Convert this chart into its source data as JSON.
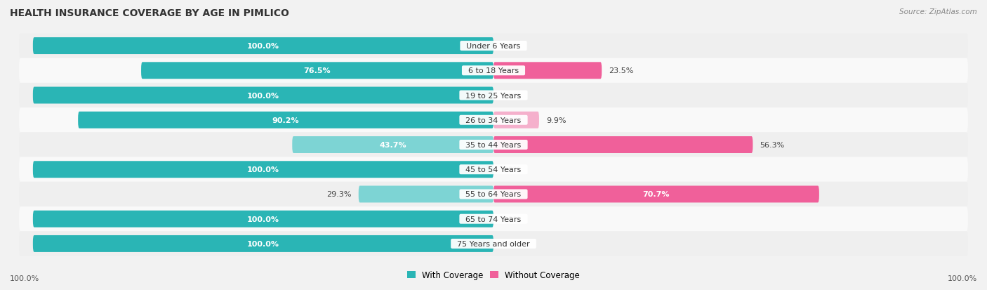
{
  "title": "HEALTH INSURANCE COVERAGE BY AGE IN PIMLICO",
  "source": "Source: ZipAtlas.com",
  "categories": [
    "Under 6 Years",
    "6 to 18 Years",
    "19 to 25 Years",
    "26 to 34 Years",
    "35 to 44 Years",
    "45 to 54 Years",
    "55 to 64 Years",
    "65 to 74 Years",
    "75 Years and older"
  ],
  "with_coverage": [
    100.0,
    76.5,
    100.0,
    90.2,
    43.7,
    100.0,
    29.3,
    100.0,
    100.0
  ],
  "without_coverage": [
    0.0,
    23.5,
    0.0,
    9.9,
    56.3,
    0.0,
    70.7,
    0.0,
    0.0
  ],
  "color_with_dark": "#2ab5b5",
  "color_with_light": "#7dd4d4",
  "color_without_dark": "#f0609a",
  "color_without_light": "#f5b0cc",
  "fig_bg": "#f2f2f2",
  "row_bg_light": "#f9f9f9",
  "row_bg_dark": "#efefef",
  "title_fontsize": 10,
  "source_fontsize": 7.5,
  "bar_label_fontsize": 8,
  "category_fontsize": 8,
  "legend_fontsize": 8.5,
  "footer_fontsize": 8
}
